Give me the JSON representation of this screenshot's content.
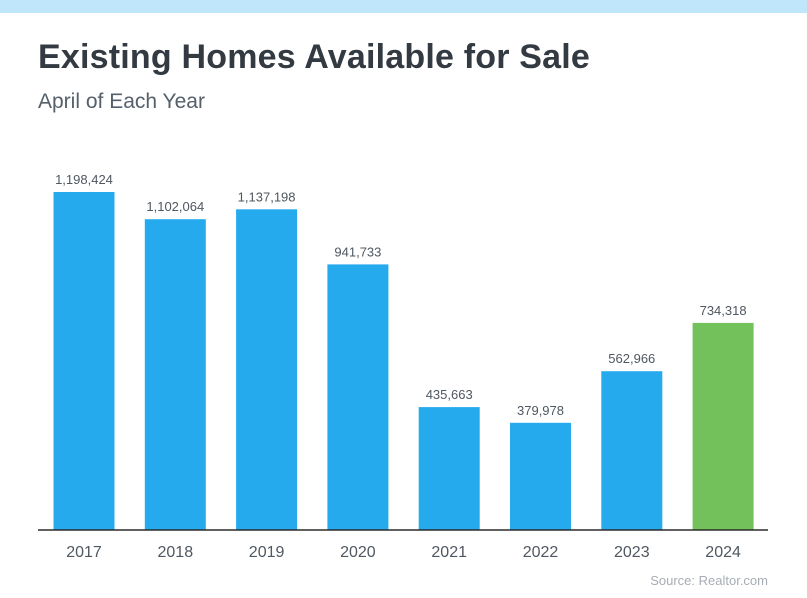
{
  "title": "Existing Homes Available for Sale",
  "subtitle": "April of Each Year",
  "source": "Source: Realtor.com",
  "colors": {
    "top_bar": "#bfe6fa",
    "bar": "#25aaee",
    "highlight": "#72c15a",
    "axis": "#2b2b2b",
    "tick_label": "#4f5760",
    "data_label": "#4f5760"
  },
  "chart_data": {
    "type": "bar",
    "categories": [
      "2017",
      "2018",
      "2019",
      "2020",
      "2021",
      "2022",
      "2023",
      "2024"
    ],
    "values": [
      1198424,
      1102064,
      1137198,
      941733,
      435663,
      379978,
      562966,
      734318
    ],
    "value_labels": [
      "1,198,424",
      "1,102,064",
      "1,137,198",
      "941,733",
      "435,663",
      "379,978",
      "562,966",
      "734,318"
    ],
    "highlight_category": "2024",
    "title": "Existing Homes Available for Sale",
    "subtitle": "April of Each Year",
    "ylim": [
      0,
      1198424
    ],
    "grid": false,
    "legend": "none"
  }
}
